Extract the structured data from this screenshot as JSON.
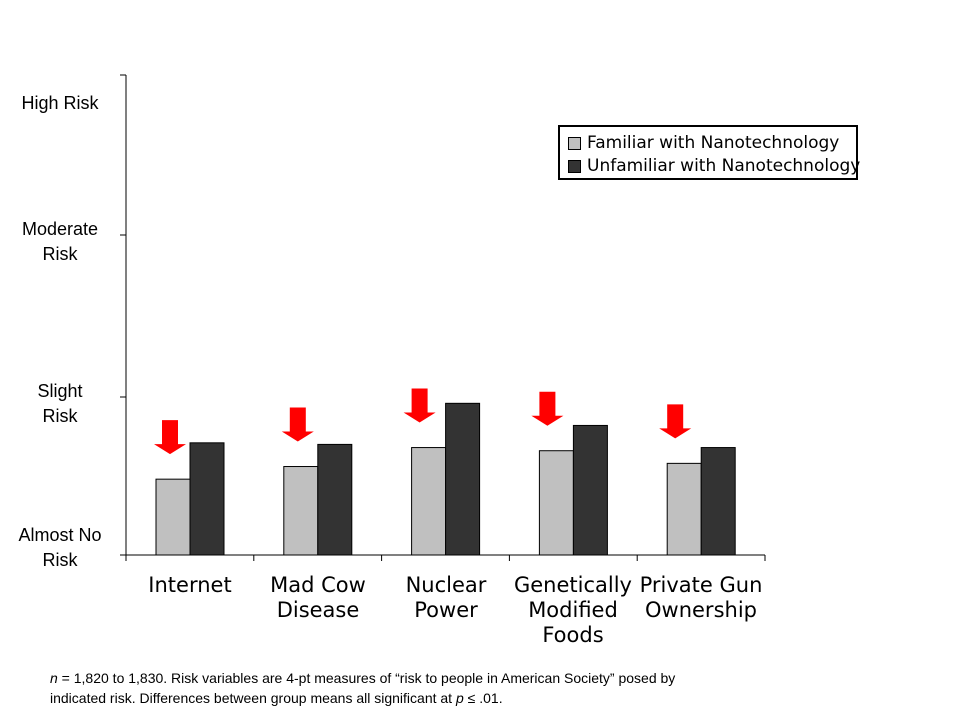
{
  "chart_data": {
    "type": "bar",
    "categories": [
      [
        "Internet"
      ],
      [
        "Mad Cow",
        "Disease"
      ],
      [
        "Nuclear",
        "Power"
      ],
      [
        "Genetically",
        "Modified",
        "Foods"
      ],
      [
        "Private Gun",
        "Ownership"
      ]
    ],
    "series": [
      {
        "name": "Familiar with Nanotechnology",
        "color": "#c0c0c0",
        "values": [
          1.48,
          1.56,
          1.68,
          1.66,
          1.58
        ]
      },
      {
        "name": "Unfamiliar with Nanotechnology",
        "color": "#333333",
        "values": [
          1.71,
          1.7,
          1.96,
          1.82,
          1.68
        ]
      }
    ],
    "y_ticks": [
      {
        "value": 1,
        "label": [
          "Almost No",
          "Risk"
        ]
      },
      {
        "value": 2,
        "label": [
          "Slight",
          "Risk"
        ]
      },
      {
        "value": 3,
        "label": [
          "Moderate",
          "Risk"
        ]
      },
      {
        "value": 4,
        "label": [
          "High Risk"
        ]
      }
    ],
    "ylim": [
      1,
      4
    ],
    "legend_position": "top-right",
    "annotations": {
      "type": "red down arrows above each familiar-group bar",
      "color": "#ff0000"
    },
    "grid": false
  },
  "footnote": {
    "line1_n": "n",
    "line1_rest": " = 1,820 to 1,830. Risk variables are 4-pt measures of “risk to people in American Society” posed by",
    "line2_pre": "indicated risk. Differences between group means all significant at  ",
    "line2_p": "p",
    "line2_post": " ≤  .01."
  }
}
